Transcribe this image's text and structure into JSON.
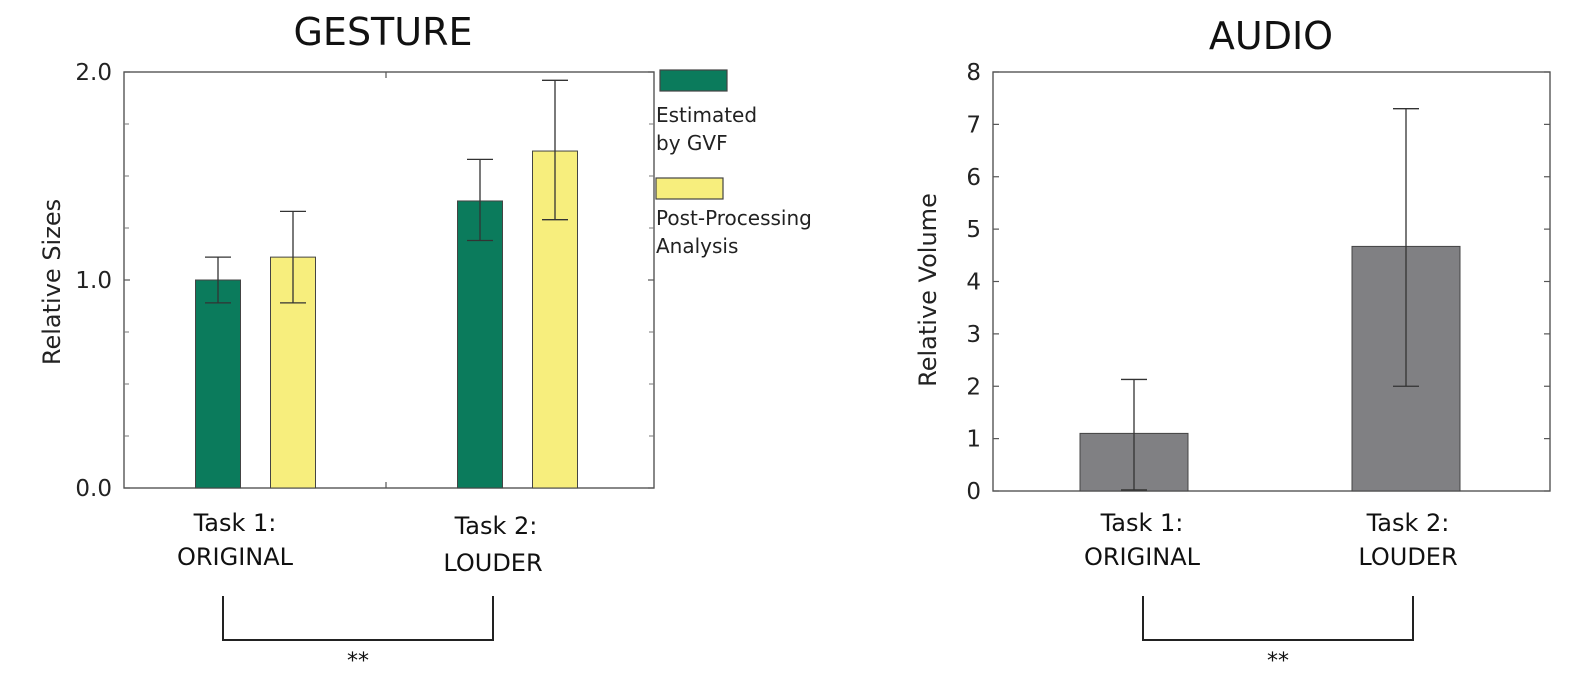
{
  "chart_data": [
    {
      "type": "bar",
      "title": "GESTURE",
      "ylabel": "Relative Sizes",
      "ylim": [
        0,
        2.0
      ],
      "yticks": [
        "0.0",
        "1.0",
        "2.0"
      ],
      "categories": [
        {
          "line1": "Task 1:",
          "line2": "ORIGINAL"
        },
        {
          "line1": "Task 2:",
          "line2": "LOUDER"
        }
      ],
      "series": [
        {
          "name": "Estimated by GVF",
          "legend_lines": [
            "Estimated",
            "by GVF"
          ],
          "color": "#0b7b5c",
          "values": [
            1.0,
            1.38
          ],
          "err_low": [
            0.89,
            1.19
          ],
          "err_high": [
            1.11,
            1.58
          ]
        },
        {
          "name": "Post-Processing Analysis",
          "legend_lines": [
            "Post-Processing",
            "Analysis"
          ],
          "color": "#f7ee7d",
          "values": [
            1.11,
            1.62
          ],
          "err_low": [
            0.89,
            1.29
          ],
          "err_high": [
            1.33,
            1.96
          ]
        }
      ],
      "significance": "**",
      "grid": false,
      "legend_position": "right"
    },
    {
      "type": "bar",
      "title": "AUDIO",
      "ylabel": "Relative Volume",
      "ylim": [
        0,
        8
      ],
      "yticks": [
        "0",
        "1",
        "2",
        "3",
        "4",
        "5",
        "6",
        "7",
        "8"
      ],
      "categories": [
        {
          "line1": "Task 1:",
          "line2": "ORIGINAL"
        },
        {
          "line1": "Task 2:",
          "line2": "LOUDER"
        }
      ],
      "series": [
        {
          "color": "#808083",
          "values": [
            1.1,
            4.67
          ],
          "err_low": [
            0.02,
            2.0
          ],
          "err_high": [
            2.13,
            7.3
          ]
        }
      ],
      "significance": "**",
      "grid": false
    }
  ]
}
